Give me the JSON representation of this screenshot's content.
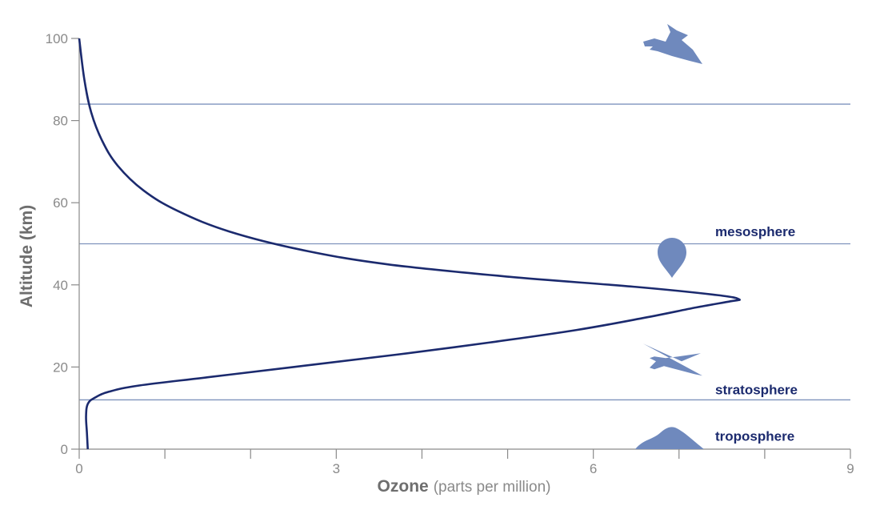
{
  "chart_data": {
    "type": "line",
    "xlabel_bold": "Ozone",
    "xlabel_unit": "(parts per million)",
    "ylabel": "Altitude (km)",
    "xlim": [
      0,
      9
    ],
    "ylim": [
      0,
      100
    ],
    "x_ticks": [
      0,
      3,
      6,
      9
    ],
    "x_minor_ticks": [
      1,
      2,
      4,
      5,
      7,
      8
    ],
    "y_ticks": [
      0,
      20,
      40,
      60,
      80,
      100
    ],
    "grid": false,
    "colors": {
      "line": "#1b2a6e",
      "boundary": "#7f93bd",
      "icon": "#6f89bd",
      "axis": "#8a8a8a",
      "label": "#1b2a6e"
    },
    "series": [
      {
        "x": [
          0.1,
          0.09,
          0.08,
          0.1,
          0.18,
          0.35,
          0.7,
          1.5,
          2.5,
          3.7,
          4.8,
          5.8,
          6.6,
          7.2,
          7.6,
          7.7,
          7.45,
          6.5,
          5.0,
          3.6,
          2.6,
          1.75,
          1.15,
          0.75,
          0.45,
          0.27,
          0.14,
          0.06,
          0.0
        ],
        "y": [
          0,
          4,
          8,
          11,
          12.5,
          14,
          15.5,
          17.5,
          20,
          23,
          26,
          29,
          32,
          34.5,
          36,
          36.5,
          37.5,
          39.5,
          42,
          45,
          48.5,
          53,
          58,
          63,
          69,
          75,
          82,
          90,
          100
        ]
      }
    ],
    "boundaries": [
      {
        "altitude": 12,
        "label": ""
      },
      {
        "altitude": 50,
        "label": ""
      },
      {
        "altitude": 84,
        "label": ""
      }
    ],
    "annotations": [
      {
        "text": "troposphere",
        "altitude": 3.2
      },
      {
        "text": "stratosphere",
        "altitude": 14.5
      },
      {
        "text": "mesosphere",
        "altitude": 53
      }
    ],
    "icons": [
      {
        "name": "mountain-icon",
        "altitude": 3
      },
      {
        "name": "airplane-icon",
        "altitude": 21
      },
      {
        "name": "balloon-icon",
        "altitude": 46
      },
      {
        "name": "spaceplane-icon",
        "altitude": 98
      }
    ]
  }
}
